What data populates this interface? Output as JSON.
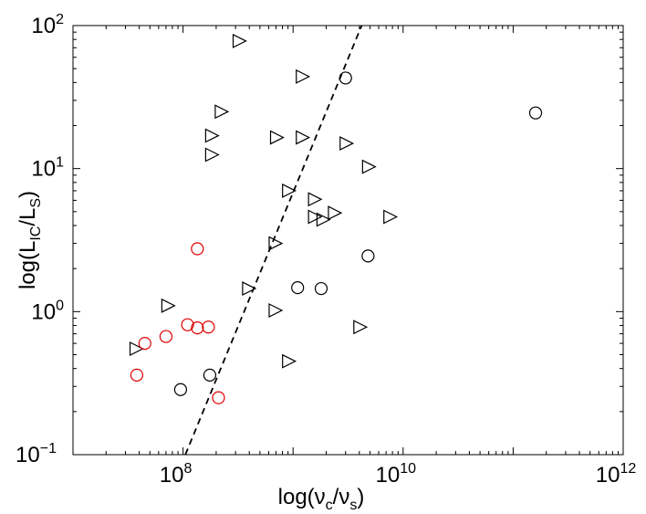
{
  "chart_data": {
    "type": "scatter",
    "title": "",
    "xlabel": {
      "base": "log(ν",
      "sub1": "c",
      "mid": "/ν",
      "sub2": "s",
      "end": ")"
    },
    "ylabel": {
      "base": "log(L",
      "sub1": "IC",
      "mid": "/L",
      "sub2": "S",
      "end": ")"
    },
    "x_scale": "log",
    "y_scale": "log",
    "xlim": [
      10000000.0,
      1000000000000.0
    ],
    "ylim": [
      0.1,
      100
    ],
    "x_ticks": [
      {
        "value": 100000000.0,
        "base": "10",
        "exp": "8"
      },
      {
        "value": 10000000000.0,
        "base": "10",
        "exp": "10"
      },
      {
        "value": 1000000000000.0,
        "base": "10",
        "exp": "12"
      }
    ],
    "y_ticks": [
      {
        "value": 0.1,
        "base": "10",
        "exp": "−1"
      },
      {
        "value": 1,
        "base": "10",
        "exp": "0"
      },
      {
        "value": 10,
        "base": "10",
        "exp": "1"
      },
      {
        "value": 100,
        "base": "10",
        "exp": "2"
      }
    ],
    "grid": false,
    "legend": "none",
    "series": [
      {
        "marker": "triangle-right",
        "color": "#000000",
        "points": [
          [
            320000000.0,
            78
          ],
          [
            1200000000.0,
            44
          ],
          [
            220000000.0,
            25
          ],
          [
            180000000.0,
            17
          ],
          [
            180000000.0,
            12.5
          ],
          [
            700000000.0,
            16.5
          ],
          [
            1200000000.0,
            16.5
          ],
          [
            3000000000.0,
            15
          ],
          [
            4800000000.0,
            10.3
          ],
          [
            900000000.0,
            7.0
          ],
          [
            1550000000.0,
            6.1
          ],
          [
            1550000000.0,
            4.6
          ],
          [
            1850000000.0,
            4.4
          ],
          [
            2350000000.0,
            4.9
          ],
          [
            7500000000.0,
            4.6
          ],
          [
            680000000.0,
            3.0
          ],
          [
            390000000.0,
            1.45
          ],
          [
            72000000.0,
            1.1
          ],
          [
            680000000.0,
            1.02
          ],
          [
            4000000000.0,
            0.78
          ],
          [
            900000000.0,
            0.45
          ],
          [
            37000000.0,
            0.55
          ]
        ]
      },
      {
        "marker": "circle",
        "color": "#000000",
        "points": [
          [
            3000000000.0,
            43
          ],
          [
            160000000000.0,
            24.5
          ],
          [
            4800000000.0,
            2.45
          ],
          [
            1100000000.0,
            1.47
          ],
          [
            1800000000.0,
            1.45
          ],
          [
            175000000.0,
            0.36
          ],
          [
            95000000.0,
            0.285
          ]
        ]
      },
      {
        "marker": "circle",
        "color": "#dd0000",
        "points": [
          [
            135000000.0,
            2.75
          ],
          [
            110000000.0,
            0.81
          ],
          [
            135000000.0,
            0.77
          ],
          [
            170000000.0,
            0.78
          ],
          [
            70000000.0,
            0.67
          ],
          [
            45000000.0,
            0.6
          ],
          [
            38000000.0,
            0.36
          ],
          [
            210000000.0,
            0.25
          ]
        ]
      }
    ],
    "reference_line": {
      "style": "dashed",
      "color": "#000000",
      "from": [
        105000000.0,
        0.1
      ],
      "to": [
        4200000000.0,
        100
      ]
    }
  }
}
